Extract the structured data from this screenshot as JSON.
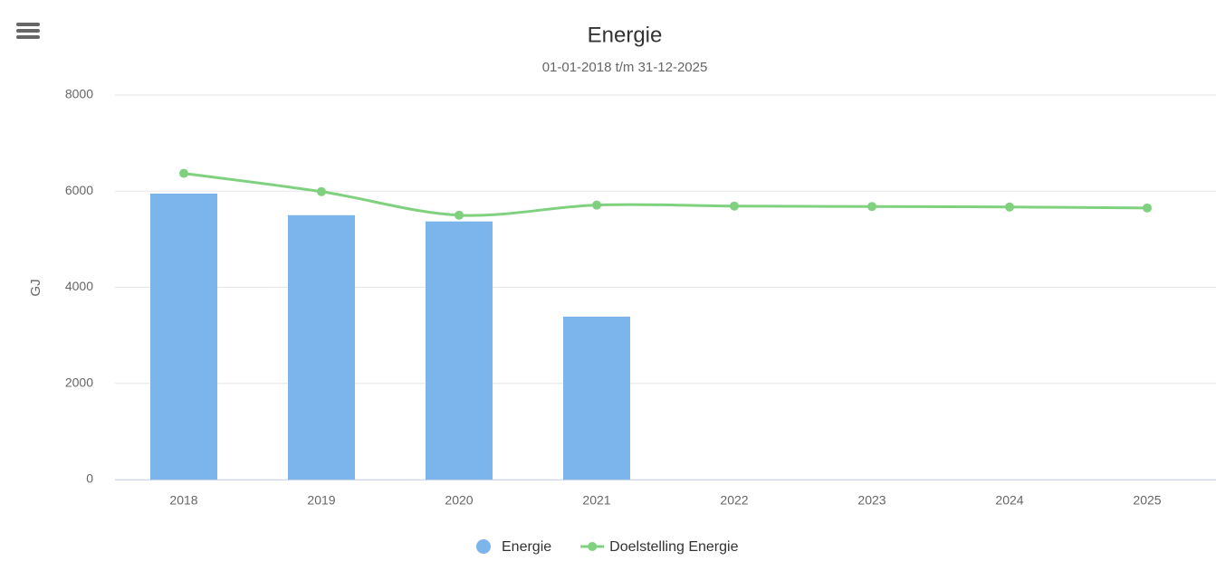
{
  "chart_data": {
    "type": "bar",
    "title": "Energie",
    "subtitle": "01-01-2018 t/m 31-12-2025",
    "y_label": "GJ",
    "categories": [
      "2018",
      "2019",
      "2020",
      "2021",
      "2022",
      "2023",
      "2024",
      "2025"
    ],
    "series": [
      {
        "name": "Energie",
        "type": "bar",
        "color": "#7cb5ec",
        "values": [
          5950,
          5500,
          5370,
          3390,
          null,
          null,
          null,
          null
        ]
      },
      {
        "name": "Doelstelling Energie",
        "type": "line",
        "color": "#7fd17f",
        "values": [
          6370,
          5990,
          5500,
          5710,
          5690,
          5680,
          5670,
          5650
        ]
      }
    ],
    "ylim": [
      0,
      8000
    ],
    "yticks": [
      0,
      2000,
      4000,
      6000,
      8000
    ],
    "grid": true
  }
}
